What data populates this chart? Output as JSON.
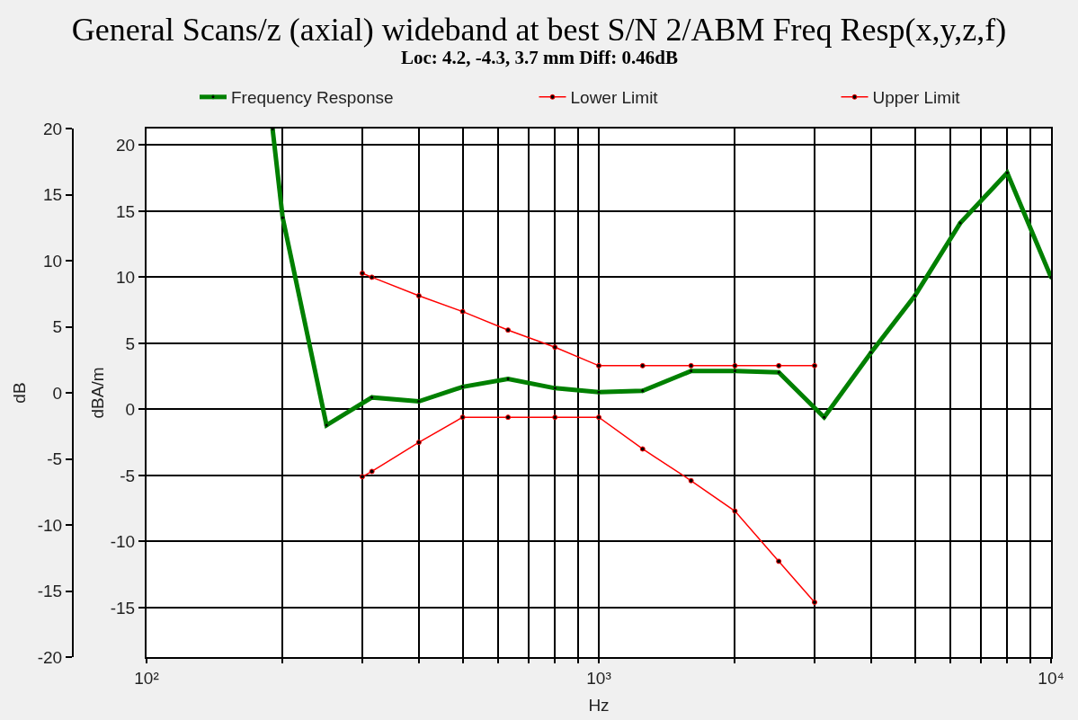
{
  "chart_data": {
    "type": "line",
    "title": "General Scans/z (axial) wideband at best S/N 2/ABM Freq Resp(x,y,z,f)",
    "subtitle": "Loc: 4.2, -4.3, 3.7 mm Diff: 0.46dB",
    "xlabel": "Hz",
    "ylabel": "dBA/m",
    "y2label": "dB",
    "log": "x",
    "grid": true,
    "legend": "top",
    "marker": "circle",
    "xlim": [
      100,
      10000
    ],
    "xticks": [
      {
        "value": 100,
        "label": "10²"
      },
      {
        "value": 200,
        "label": null
      },
      {
        "value": 300,
        "label": null
      },
      {
        "value": 400,
        "label": null
      },
      {
        "value": 500,
        "label": null
      },
      {
        "value": 600,
        "label": null
      },
      {
        "value": 700,
        "label": null
      },
      {
        "value": 800,
        "label": null
      },
      {
        "value": 900,
        "label": null
      },
      {
        "value": 1000,
        "label": "10³"
      },
      {
        "value": 2000,
        "label": null
      },
      {
        "value": 3000,
        "label": null
      },
      {
        "value": 4000,
        "label": null
      },
      {
        "value": 5000,
        "label": null
      },
      {
        "value": 6000,
        "label": null
      },
      {
        "value": 7000,
        "label": null
      },
      {
        "value": 8000,
        "label": null
      },
      {
        "value": 9000,
        "label": null
      },
      {
        "value": 10000,
        "label": "10⁴"
      }
    ],
    "ylim": [
      -18.75,
      21.25
    ],
    "yticks": [
      -15,
      -10,
      -5,
      0,
      5,
      10,
      15,
      20
    ],
    "y2lim": [
      -20,
      20
    ],
    "y2ticks": [
      -20,
      -15,
      -10,
      -5,
      0,
      5,
      10,
      15,
      20
    ],
    "series": [
      {
        "name": "Frequency Response",
        "color": "#008000",
        "x": [
          190,
          200,
          250,
          315,
          400,
          500,
          630,
          800,
          1000,
          1250,
          1600,
          2000,
          2500,
          3150,
          4000,
          5000,
          6300,
          8000,
          10000
        ],
        "values": [
          21.2,
          14.5,
          -1.2,
          0.9,
          0.6,
          1.7,
          2.3,
          1.6,
          1.3,
          1.4,
          2.9,
          2.9,
          2.8,
          -0.6,
          4.3,
          8.6,
          14.1,
          17.9,
          10.0
        ]
      },
      {
        "name": "Lower Limit",
        "color": "#ff0000",
        "x": [
          300,
          315,
          400,
          500,
          630,
          800,
          1000,
          1250,
          1600,
          2000,
          2500,
          3000
        ],
        "values": [
          -5.1,
          -4.7,
          -2.5,
          -0.6,
          -0.6,
          -0.6,
          -0.6,
          -3.0,
          -5.4,
          -7.7,
          -11.5,
          -14.6
        ]
      },
      {
        "name": "Upper Limit",
        "color": "#ff0000",
        "x": [
          300,
          315,
          400,
          500,
          630,
          800,
          1000,
          1250,
          1600,
          2000,
          2500,
          3000
        ],
        "values": [
          10.3,
          10.0,
          8.6,
          7.4,
          6.0,
          4.7,
          3.3,
          3.3,
          3.3,
          3.3,
          3.3,
          3.3
        ]
      }
    ]
  }
}
